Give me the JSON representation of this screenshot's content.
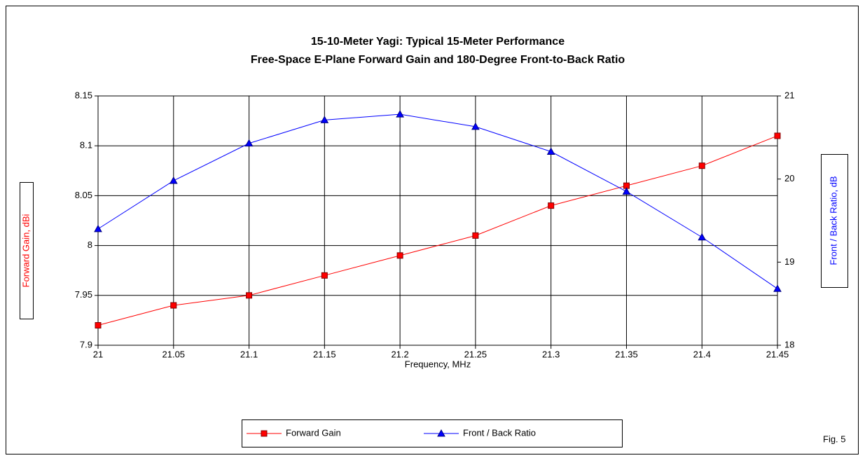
{
  "chart_data": {
    "type": "line",
    "title": "15-10-Meter Yagi: Typical 15-Meter Performance",
    "subtitle": "Free-Space E-Plane Forward Gain and 180-Degree Front-to-Back Ratio",
    "x_label": "Frequency, MHz",
    "y_label": "Forward Gain, dBi",
    "y2_label": "Front / Back Ratio, dB",
    "annotation": "Fig. 5",
    "x": [
      21,
      21.05,
      21.1,
      21.15,
      21.2,
      21.25,
      21.3,
      21.35,
      21.4,
      21.45
    ],
    "xlim": [
      21,
      21.45
    ],
    "xticks": [
      21,
      21.05,
      21.1,
      21.15,
      21.2,
      21.25,
      21.3,
      21.35,
      21.4,
      21.45
    ],
    "ylim": [
      7.9,
      8.15
    ],
    "yticks": [
      7.9,
      7.95,
      8,
      8.05,
      8.1,
      8.15
    ],
    "y2lim": [
      18,
      21
    ],
    "y2ticks": [
      18,
      19,
      20,
      21
    ],
    "grid": true,
    "legend": "bottom",
    "series": [
      {
        "name": "Forward Gain",
        "color": "#ff0000",
        "marker": "square",
        "values": [
          7.92,
          7.94,
          7.95,
          7.97,
          7.99,
          8.01,
          8.04,
          8.06,
          8.08,
          8.11
        ]
      },
      {
        "name": "Front / Back Ratio",
        "color": "#0000ff",
        "marker": "triangle",
        "axis": "y2",
        "values": [
          19.4,
          19.98,
          20.43,
          20.71,
          20.78,
          20.63,
          20.33,
          19.85,
          19.3,
          18.68
        ]
      }
    ]
  }
}
